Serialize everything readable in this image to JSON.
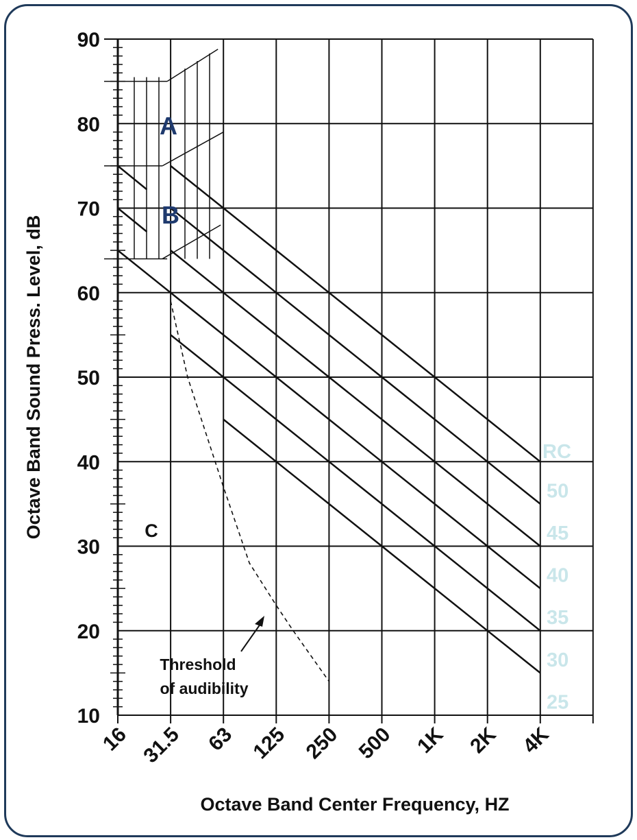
{
  "chart_data": {
    "type": "line",
    "title": "",
    "xlabel": "Octave Band Center Frequency, HZ",
    "ylabel": "Octave Band Sound Press. Level, dB",
    "x_scale": "log2",
    "categories": [
      "16",
      "31.5",
      "63",
      "125",
      "250",
      "500",
      "1K",
      "2K",
      "4K"
    ],
    "ylim": [
      10,
      90
    ],
    "yticks": [
      10,
      20,
      30,
      40,
      50,
      60,
      70,
      80,
      90
    ],
    "grid": true,
    "legend_title": "RC",
    "series": [
      {
        "name": "50",
        "values": [
          null,
          75,
          70,
          65,
          60,
          55,
          50,
          45,
          40
        ]
      },
      {
        "name": "45",
        "values": [
          null,
          70,
          65,
          60,
          55,
          50,
          45,
          40,
          35
        ]
      },
      {
        "name": "40",
        "values": [
          null,
          65,
          60,
          55,
          50,
          45,
          40,
          35,
          30
        ]
      },
      {
        "name": "35",
        "values": [
          65,
          60,
          55,
          50,
          45,
          40,
          35,
          30,
          25
        ]
      },
      {
        "name": "30",
        "values": [
          null,
          55,
          50,
          45,
          40,
          35,
          30,
          25,
          20
        ]
      },
      {
        "name": "25",
        "values": [
          null,
          null,
          45,
          40,
          35,
          30,
          25,
          20,
          15
        ]
      }
    ],
    "threshold_of_audibility": {
      "x": [
        "31.5",
        "40",
        "63",
        "90",
        "125",
        "160",
        "250"
      ],
      "values": [
        59,
        50,
        37,
        28,
        23,
        20,
        14
      ]
    },
    "region_labels": [
      "A",
      "B",
      "C"
    ],
    "annotations": [
      "Threshold",
      "of audibility"
    ]
  }
}
